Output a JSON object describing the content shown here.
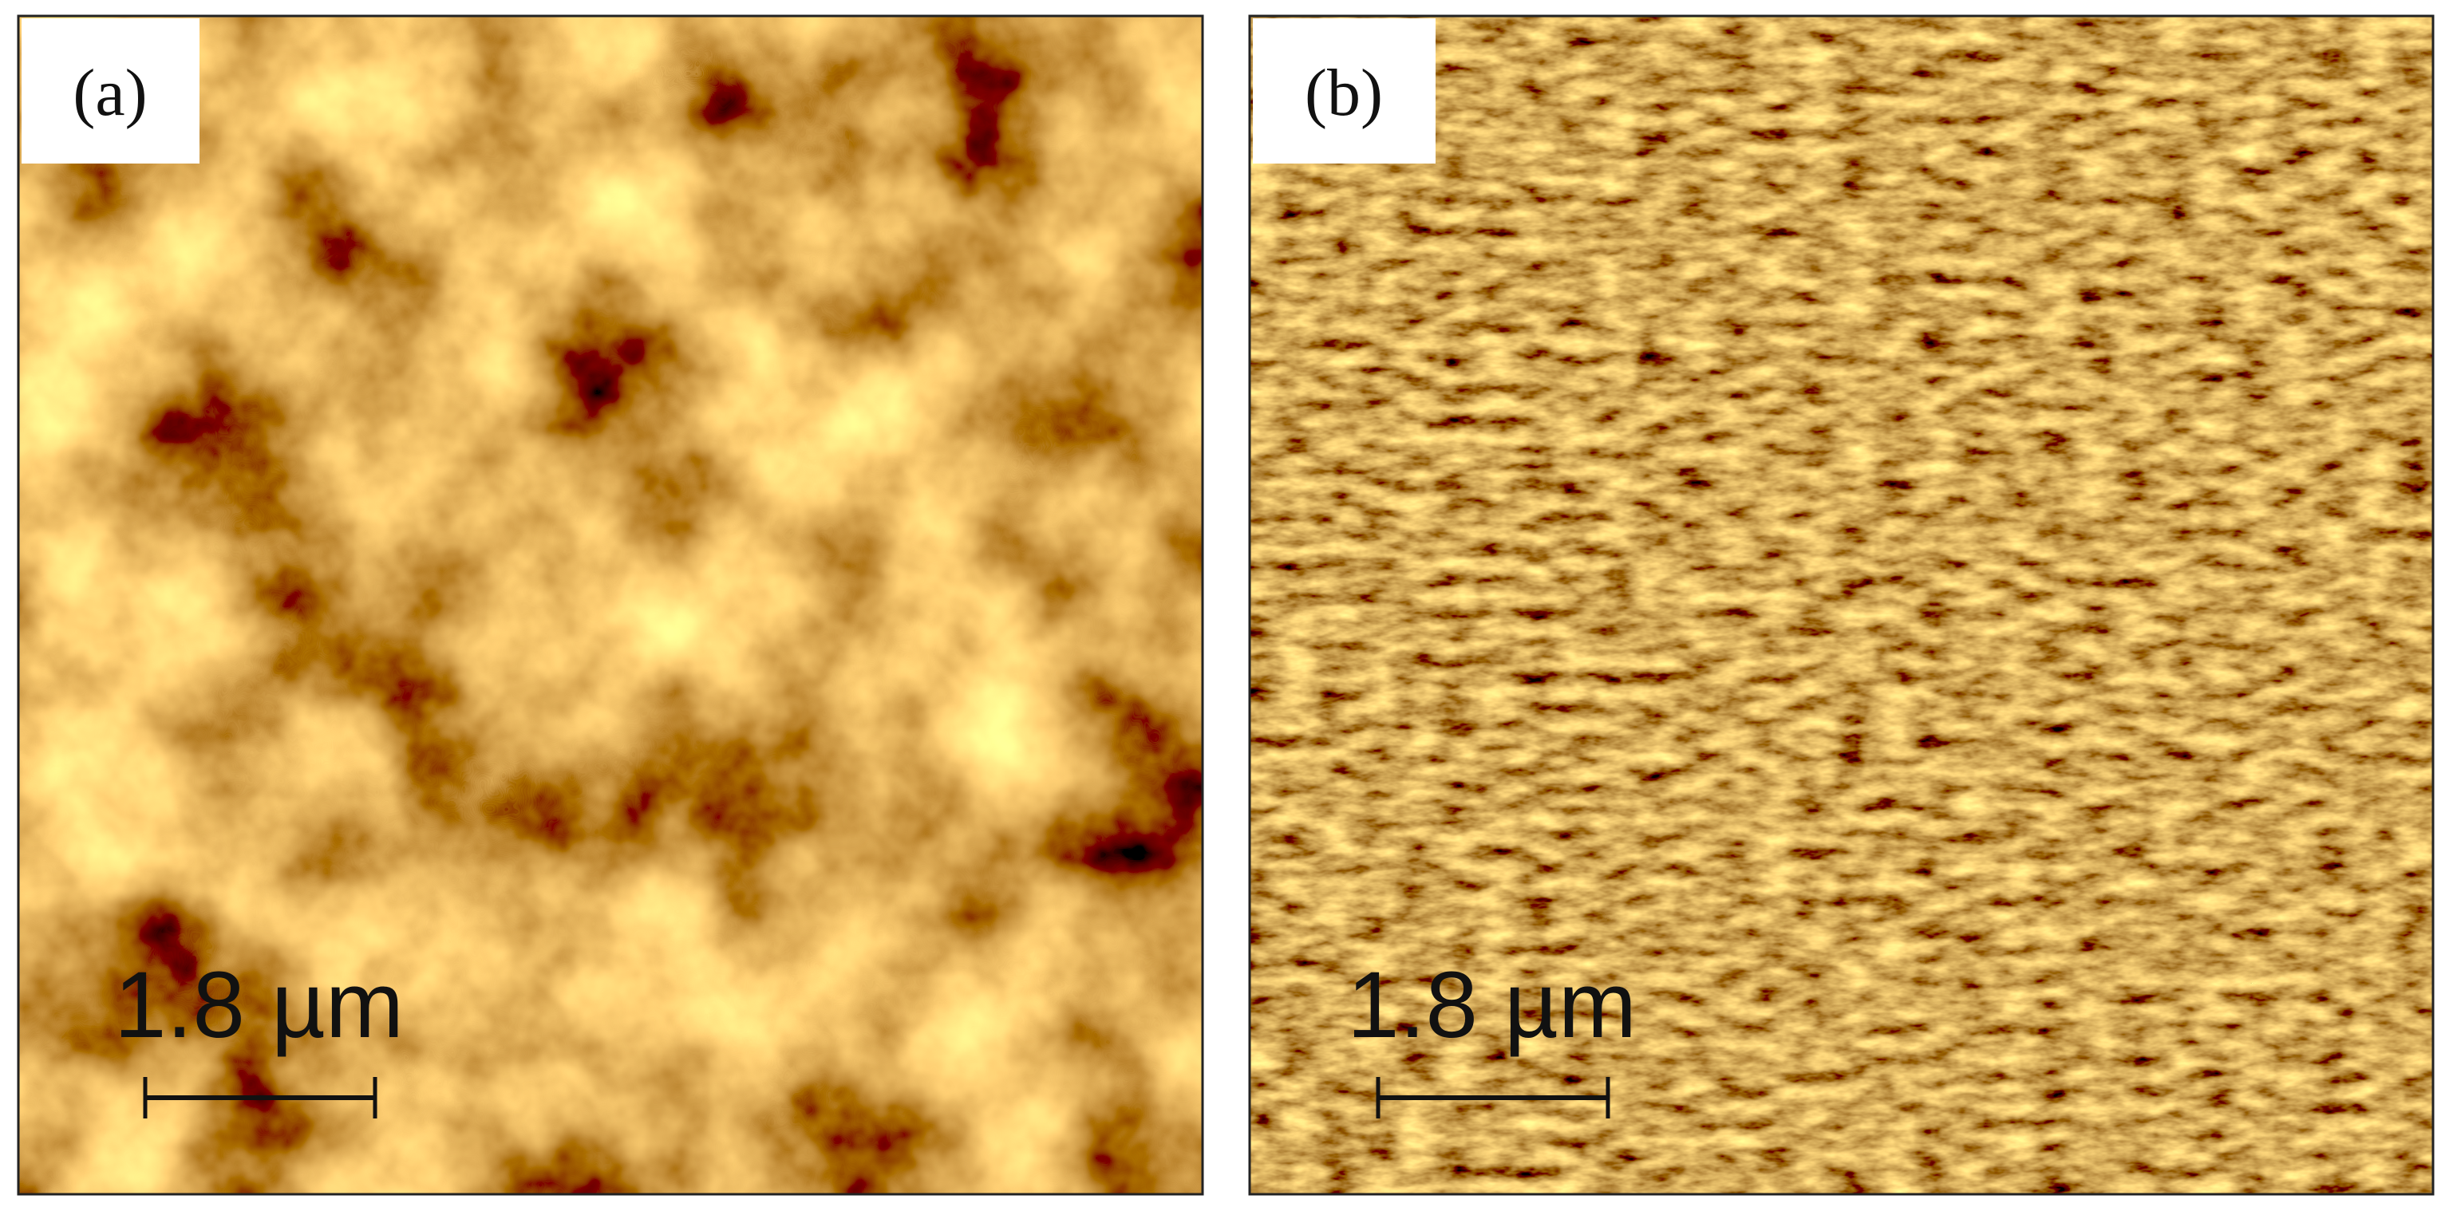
{
  "panels": [
    {
      "label": "(a)",
      "scale_bar": "1.8 µm"
    },
    {
      "label": "(b)",
      "scale_bar": "1.8 µm"
    }
  ]
}
